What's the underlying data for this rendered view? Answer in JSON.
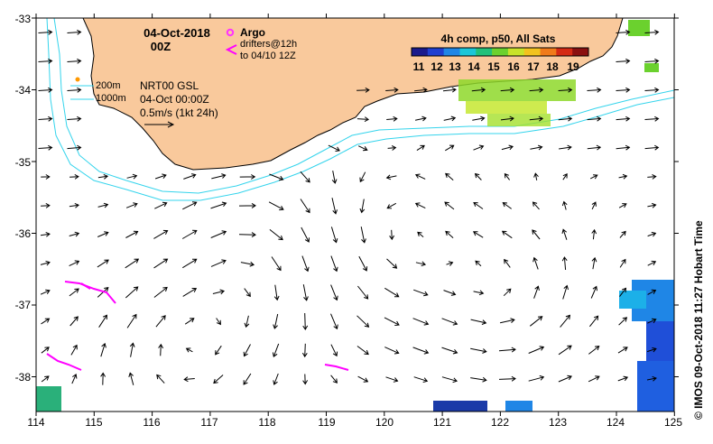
{
  "map": {
    "date_title": "04-Oct-2018",
    "time_title": "00Z",
    "argo_label": "Argo",
    "drifters_label_1": "drifters@12h",
    "drifters_label_2": "to 04/10 12Z",
    "contour_200": "200m",
    "contour_1000": "1000m",
    "product_name": "NRT00 GSL",
    "product_time": "04-Oct 00:00Z",
    "vector_scale": "0.5m/s (1kt 24h)",
    "credit": "© IMOS 09-Oct-2018 11:27 Hobart Time"
  },
  "colorbar": {
    "title": "4h comp, p50, All Sats",
    "ticks": [
      "11",
      "12",
      "13",
      "14",
      "15",
      "16",
      "17",
      "18",
      "19"
    ],
    "colors": [
      "#1a1a8c",
      "#1f3fd0",
      "#1f86e6",
      "#1cc6d8",
      "#22c07a",
      "#6bd12e",
      "#c8e22a",
      "#f2c21e",
      "#f07a1a",
      "#d42a14",
      "#8a1010"
    ]
  },
  "axes": {
    "lon_ticks": [
      "114",
      "115",
      "116",
      "117",
      "118",
      "119",
      "120",
      "121",
      "122",
      "123",
      "124",
      "125"
    ],
    "lat_ticks": [
      "-33",
      "-34",
      "-35",
      "-36",
      "-37",
      "-38"
    ]
  },
  "colors": {
    "land": "#f9c99c",
    "coast": "#000000",
    "isobath": "#34d4ec",
    "argo": "#ff33ff",
    "drifter": "#ff00ff"
  }
}
